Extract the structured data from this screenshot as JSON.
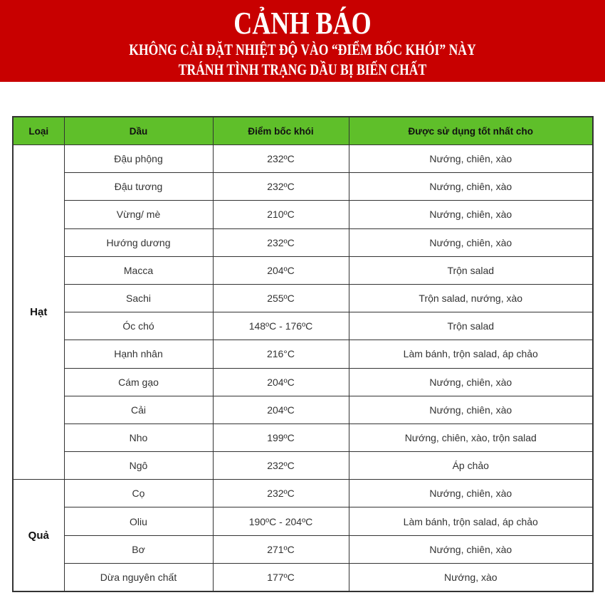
{
  "banner": {
    "title": "CẢNH BÁO",
    "line1": "KHÔNG CÀI ĐẶT NHIỆT ĐỘ VÀO “ĐIỂM BỐC KHÓI” NÀY",
    "line2": "TRÁNH TÌNH TRẠNG DẦU BỊ BIẾN CHẤT",
    "color": "#c80000"
  },
  "table": {
    "header_color": "#5fbf2a",
    "headers": [
      "Loại",
      "Dầu",
      "Điểm bốc khói",
      "Được sử dụng tốt nhất cho"
    ],
    "groups": [
      {
        "category": "Hạt",
        "rows": [
          [
            "Đậu phộng",
            "232ºC",
            "Nướng, chiên, xào"
          ],
          [
            "Đậu tương",
            "232ºC",
            "Nướng, chiên, xào"
          ],
          [
            "Vừng/ mè",
            "210ºC",
            "Nướng, chiên, xào"
          ],
          [
            "Hướng dương",
            "232ºC",
            "Nướng, chiên, xào"
          ],
          [
            "Macca",
            "204ºC",
            "Trộn salad"
          ],
          [
            "Sachi",
            "255ºC",
            "Trộn salad, nướng, xào"
          ],
          [
            "Óc chó",
            "148ºC - 176ºC",
            "Trộn salad"
          ],
          [
            "Hạnh nhân",
            "216°C",
            "Làm bánh, trộn salad, áp chảo"
          ],
          [
            "Cám gạo",
            "204ºC",
            "Nướng, chiên, xào"
          ],
          [
            "Cải",
            "204ºC",
            "Nướng, chiên, xào"
          ],
          [
            "Nho",
            "199ºC",
            "Nướng, chiên, xào, trộn salad"
          ],
          [
            "Ngô",
            "232ºC",
            "Áp chảo"
          ]
        ]
      },
      {
        "category": "Quả",
        "rows": [
          [
            "Cọ",
            "232ºC",
            "Nướng, chiên, xào"
          ],
          [
            "Oliu",
            "190ºC - 204ºC",
            "Làm bánh, trộn salad, áp chảo"
          ],
          [
            "Bơ",
            "271ºC",
            "Nướng, chiên, xào"
          ],
          [
            "Dừa nguyên chất",
            "177ºC",
            "Nướng, xào"
          ]
        ]
      }
    ]
  }
}
